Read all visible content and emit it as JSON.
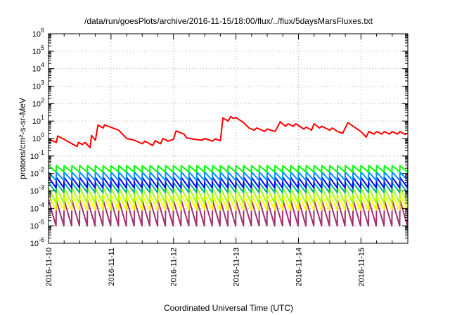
{
  "chart_data": {
    "type": "line",
    "title": "/data/run/goesPlots/archive/2016-11-15/18:00/flux/../flux/5daysMarsFluxes.txt",
    "xlabel": "Coordinated Universal Time (UTC)",
    "ylabel": "protons/cm²-s-sr-MeV",
    "yscale": "log",
    "ylim": [
      1e-06,
      1000000.0
    ],
    "xlim": [
      "2016-11-10T00:00",
      "2016-11-15T18:00"
    ],
    "x_ticks": [
      "2016-11-10",
      "2016-11-11",
      "2016-11-12",
      "2016-11-13",
      "2016-11-14",
      "2016-11-15"
    ],
    "y_ticks": [
      {
        "base": "10",
        "exp": "-6"
      },
      {
        "base": "10",
        "exp": "-5"
      },
      {
        "base": "10",
        "exp": "-4"
      },
      {
        "base": "10",
        "exp": "-3"
      },
      {
        "base": "10",
        "exp": "-2"
      },
      {
        "base": "10",
        "exp": "-1"
      },
      {
        "base": "10",
        "exp": "0"
      },
      {
        "base": "10",
        "exp": "1"
      },
      {
        "base": "10",
        "exp": "2"
      },
      {
        "base": "10",
        "exp": "3"
      },
      {
        "base": "10",
        "exp": "4"
      },
      {
        "base": "10",
        "exp": "5"
      },
      {
        "base": "10",
        "exp": "6"
      }
    ],
    "grid": true,
    "series": [
      {
        "color": "#ff0000",
        "points": [
          [
            "2016-11-10T00:00",
            0.9
          ],
          [
            "2016-11-10T03:00",
            0.6
          ],
          [
            "2016-11-10T03:30",
            1.4
          ],
          [
            "2016-11-10T06:00",
            0.9
          ],
          [
            "2016-11-10T09:00",
            0.5
          ],
          [
            "2016-11-10T11:00",
            0.35
          ],
          [
            "2016-11-10T11:30",
            0.6
          ],
          [
            "2016-11-10T13:00",
            0.45
          ],
          [
            "2016-11-10T14:00",
            0.6
          ],
          [
            "2016-11-10T16:00",
            0.3
          ],
          [
            "2016-11-10T16:30",
            1.5
          ],
          [
            "2016-11-10T18:00",
            0.8
          ],
          [
            "2016-11-10T19:00",
            6.0
          ],
          [
            "2016-11-10T21:00",
            4.0
          ],
          [
            "2016-11-10T21:30",
            6.0
          ],
          [
            "2016-11-11T03:00",
            3.0
          ],
          [
            "2016-11-11T06:00",
            1.0
          ],
          [
            "2016-11-11T09:00",
            0.8
          ],
          [
            "2016-11-11T12:00",
            0.5
          ],
          [
            "2016-11-11T13:00",
            0.7
          ],
          [
            "2016-11-11T16:00",
            0.4
          ],
          [
            "2016-11-11T17:00",
            0.75
          ],
          [
            "2016-11-11T19:00",
            0.5
          ],
          [
            "2016-11-11T20:00",
            1.0
          ],
          [
            "2016-11-11T22:00",
            0.7
          ],
          [
            "2016-11-12T00:00",
            0.9
          ],
          [
            "2016-11-12T01:00",
            2.7
          ],
          [
            "2016-11-12T04:00",
            1.8
          ],
          [
            "2016-11-12T05:00",
            1.1
          ],
          [
            "2016-11-12T08:00",
            0.9
          ],
          [
            "2016-11-12T11:00",
            0.8
          ],
          [
            "2016-11-12T12:00",
            1.0
          ],
          [
            "2016-11-12T15:00",
            0.7
          ],
          [
            "2016-11-12T16:00",
            0.95
          ],
          [
            "2016-11-12T18:00",
            0.75
          ],
          [
            "2016-11-12T19:00",
            15
          ],
          [
            "2016-11-12T21:00",
            10
          ],
          [
            "2016-11-12T22:00",
            18
          ],
          [
            "2016-11-12T23:00",
            14
          ],
          [
            "2016-11-13T00:00",
            16
          ],
          [
            "2016-11-13T03:00",
            8
          ],
          [
            "2016-11-13T05:00",
            4
          ],
          [
            "2016-11-13T07:00",
            3.0
          ],
          [
            "2016-11-13T08:00",
            4.0
          ],
          [
            "2016-11-13T10:00",
            3.0
          ],
          [
            "2016-11-13T11:00",
            2.5
          ],
          [
            "2016-11-13T12:00",
            3.5
          ],
          [
            "2016-11-13T15:00",
            2.5
          ],
          [
            "2016-11-13T17:00",
            9
          ],
          [
            "2016-11-13T19:00",
            5
          ],
          [
            "2016-11-13T20:00",
            7
          ],
          [
            "2016-11-13T22:00",
            5
          ],
          [
            "2016-11-13T23:00",
            7
          ],
          [
            "2016-11-14T02:00",
            3.5
          ],
          [
            "2016-11-14T03:00",
            4.5
          ],
          [
            "2016-11-14T05:00",
            3.0
          ],
          [
            "2016-11-14T06:00",
            7
          ],
          [
            "2016-11-14T08:00",
            4
          ],
          [
            "2016-11-14T09:00",
            5
          ],
          [
            "2016-11-14T12:00",
            3
          ],
          [
            "2016-11-14T13:00",
            4
          ],
          [
            "2016-11-14T15:00",
            2.5
          ],
          [
            "2016-11-14T17:00",
            2
          ],
          [
            "2016-11-14T19:00",
            8
          ],
          [
            "2016-11-14T21:00",
            5
          ],
          [
            "2016-11-15T00:00",
            2.5
          ],
          [
            "2016-11-15T02:00",
            1.2
          ],
          [
            "2016-11-15T03:00",
            2.5
          ],
          [
            "2016-11-15T05:00",
            1.8
          ],
          [
            "2016-11-15T06:00",
            2.5
          ],
          [
            "2016-11-15T08:00",
            1.8
          ],
          [
            "2016-11-15T09:00",
            2.5
          ],
          [
            "2016-11-15T11:00",
            1.8
          ],
          [
            "2016-11-15T12:00",
            2.5
          ],
          [
            "2016-11-15T14:00",
            1.8
          ],
          [
            "2016-11-15T15:00",
            2.5
          ],
          [
            "2016-11-15T17:00",
            1.7
          ],
          [
            "2016-11-15T17:30",
            2.0
          ]
        ]
      },
      {
        "color": "#00ff00",
        "sawtooth": {
          "start": "2016-11-10T00:00",
          "end": "2016-11-15T18:00",
          "period_hours": 3,
          "peak": 0.028,
          "trough": 0.012
        }
      },
      {
        "color": "#0090ff",
        "sawtooth": {
          "start": "2016-11-10T00:00",
          "end": "2016-11-15T18:00",
          "period_hours": 3,
          "peak": 0.012,
          "trough": 0.004
        }
      },
      {
        "color": "#0000ff",
        "sawtooth": {
          "start": "2016-11-10T00:00",
          "end": "2016-11-15T18:00",
          "period_hours": 3,
          "peak": 0.006,
          "trough": 0.0015
        }
      },
      {
        "color": "#00b090",
        "sawtooth": {
          "start": "2016-11-10T00:00",
          "end": "2016-11-15T18:00",
          "period_hours": 3,
          "peak": 0.003,
          "trough": 0.0008
        }
      },
      {
        "color": "#a0ff00",
        "sawtooth": {
          "start": "2016-11-10T00:00",
          "end": "2016-11-15T18:00",
          "period_hours": 3,
          "peak": 0.0015,
          "trough": 0.0002
        }
      },
      {
        "color": "#ffff00",
        "sawtooth": {
          "start": "2016-11-10T00:00",
          "end": "2016-11-15T18:00",
          "period_hours": 3,
          "peak": 0.0006,
          "trough": 8e-05
        }
      },
      {
        "color": "#a03070",
        "sawtooth": {
          "start": "2016-11-10T00:00",
          "end": "2016-11-15T18:00",
          "period_hours": 3,
          "peak": 0.0003,
          "trough": 1e-05
        }
      }
    ]
  }
}
